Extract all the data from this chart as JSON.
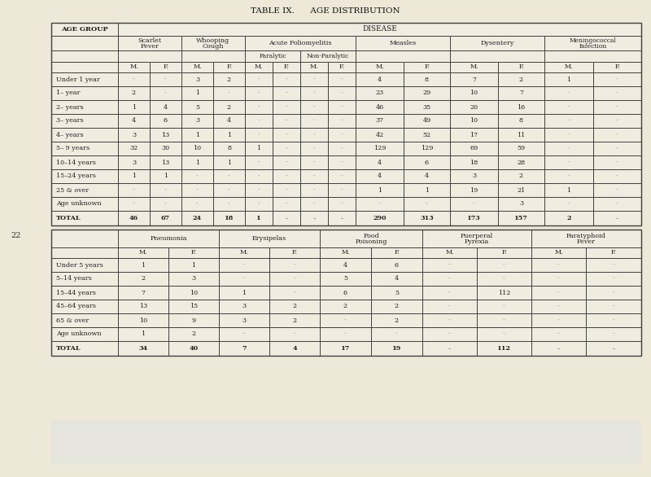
{
  "title": "TABLE IX.      AGE DISTRIBUTION",
  "bg_color": "#ede8d8",
  "table_bg": "#f0ece0",
  "border_color": "#444444",
  "text_color": "#222222",
  "dash_color": "#999999",
  "table1": {
    "age_groups": [
      "Under 1 year",
      "1– year",
      "2– years",
      "3– years",
      "4– years",
      "5– 9 years",
      "10–14 years",
      "15–24 years",
      "25 & over",
      "Age unknown",
      "TOTAL"
    ],
    "data": {
      "Scarlet Fever M": [
        "-",
        "2",
        "1",
        "4",
        "3",
        "32",
        "3",
        "1",
        "-",
        "-",
        "46"
      ],
      "Scarlet Fever F": [
        "-",
        "-",
        "4",
        "6",
        "13",
        "30",
        "13",
        "1",
        "-",
        "-",
        "67"
      ],
      "Whooping Cough M": [
        "3",
        "1",
        "5",
        "3",
        "1",
        "10",
        "1",
        "-",
        "-",
        "-",
        "24"
      ],
      "Whooping Cough F": [
        "2",
        "-",
        "2",
        "4",
        "1",
        "8",
        "1",
        "-",
        "-",
        "-",
        "18"
      ],
      "Paralytic M": [
        "-",
        "-",
        "-",
        "-",
        "-",
        "1",
        "-",
        "-",
        "-",
        "-",
        "1"
      ],
      "Paralytic F": [
        "-",
        "-",
        "-",
        "-",
        "-",
        "-",
        "-",
        "-",
        "-",
        "-",
        "-"
      ],
      "Non-Paralytic M": [
        "-",
        "-",
        "-",
        "-",
        "-",
        "-",
        "-",
        "-",
        "-",
        "-",
        "-"
      ],
      "Non-Paralytic F": [
        "-",
        "-",
        "-",
        "-",
        "-",
        "-",
        "-",
        "-",
        "-",
        "-",
        "-"
      ],
      "Measles M": [
        "4",
        "23",
        "46",
        "37",
        "42",
        "129",
        "4",
        "4",
        "1",
        "-",
        "290"
      ],
      "Measles F": [
        "8",
        "29",
        "35",
        "49",
        "52",
        "129",
        "6",
        "4",
        "1",
        "-",
        "313"
      ],
      "Dysentery M": [
        "7",
        "10",
        "20",
        "10",
        "17",
        "69",
        "18",
        "3",
        "19",
        "-",
        "173"
      ],
      "Dysentery F": [
        "2",
        "7",
        "16",
        "8",
        "11",
        "59",
        "28",
        "2",
        "21",
        "3",
        "157"
      ],
      "Meningococcal M": [
        "1",
        "-",
        "-",
        "-",
        "-",
        "-",
        "-",
        "-",
        "1",
        "-",
        "2"
      ],
      "Meningococcal F": [
        "-",
        "-",
        "-",
        "-",
        "-",
        "-",
        "-",
        "-",
        "-",
        "-",
        "-"
      ]
    }
  },
  "table2": {
    "age_groups": [
      "Under 5 years",
      "5–14 years",
      "15–44 years",
      "45–64 years",
      "65 & over",
      "Age unknown",
      "TOTAL"
    ],
    "data": {
      "Pneumonia M": [
        "1",
        "2",
        "7",
        "13",
        "10",
        "1",
        "34"
      ],
      "Pneumonia F": [
        "1",
        "3",
        "10",
        "15",
        "9",
        "2",
        "40"
      ],
      "Erysipelas M": [
        "-",
        "-",
        "1",
        "3",
        "3",
        "-",
        "7"
      ],
      "Erysipelas F": [
        "-",
        "-",
        "-",
        "2",
        "2",
        "-",
        "4"
      ],
      "Food Poisoning M": [
        "4",
        "5",
        "6",
        "2",
        "-",
        "-",
        "17"
      ],
      "Food Poisoning F": [
        "6",
        "4",
        "5",
        "2",
        "2",
        "-",
        "19"
      ],
      "Puerperal Pyrexia M": [
        "-",
        "-",
        "-",
        "-",
        "-",
        "-",
        "-"
      ],
      "Puerperal Pyrexia F": [
        "-",
        "-",
        "112",
        "-",
        "-",
        "-",
        "112"
      ],
      "Paratyphoid M": [
        "-",
        "-",
        "-",
        "-",
        "-",
        "-",
        "-"
      ],
      "Paratyphoid F": [
        "-",
        "-",
        "-",
        "-",
        "-",
        "-",
        "-"
      ]
    }
  },
  "page_number": "22"
}
